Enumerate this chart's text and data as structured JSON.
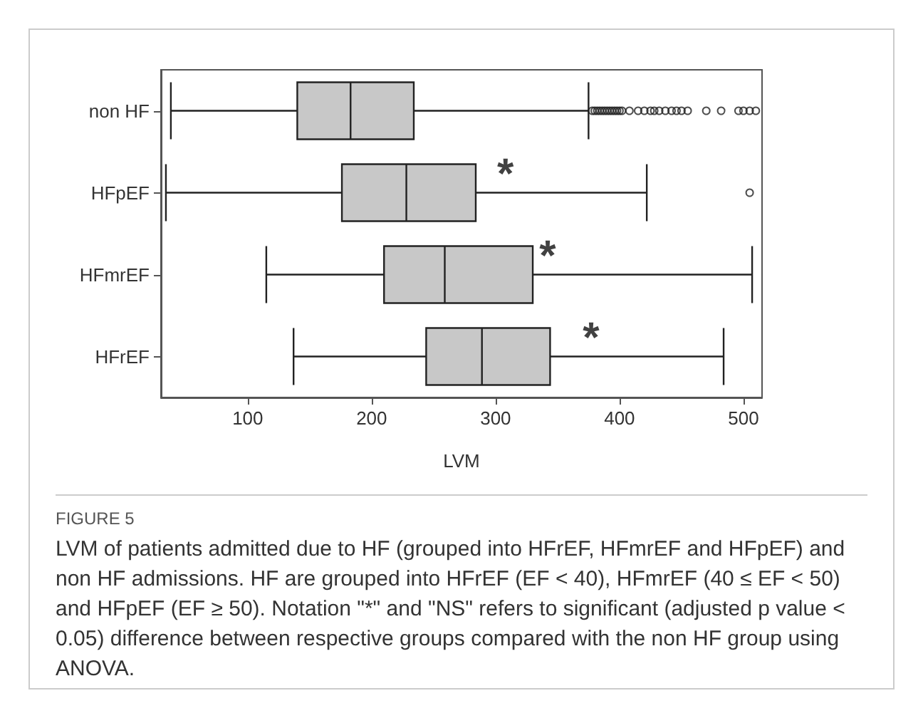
{
  "chart_data": {
    "type": "box",
    "orientation": "horizontal",
    "xlabel": "LVM",
    "categories": [
      "non HF",
      "HFpEF",
      "HFmrEF",
      "HFrEF"
    ],
    "boxes": [
      {
        "low": 38,
        "q1": 140,
        "median": 183,
        "q3": 234,
        "high": 375,
        "outliers": [
          378,
          380,
          382,
          384,
          386,
          388,
          390,
          392,
          394,
          396,
          398,
          400,
          402,
          408,
          415,
          420,
          425,
          428,
          432,
          437,
          442,
          446,
          450,
          455,
          470,
          482,
          496,
          500,
          505,
          510
        ]
      },
      {
        "low": 34,
        "q1": 176,
        "median": 228,
        "q3": 284,
        "high": 422,
        "outliers": [
          505
        ]
      },
      {
        "low": 115,
        "q1": 210,
        "median": 259,
        "q3": 330,
        "high": 507
      },
      {
        "low": 137,
        "q1": 244,
        "median": 289,
        "q3": 344,
        "high": 484
      }
    ],
    "color": "#c8c8c8",
    "xlim": [
      30,
      515
    ],
    "xticks": [
      100,
      200,
      300,
      400,
      500
    ],
    "grid": false,
    "annotations": [
      {
        "text": "*",
        "x": 308,
        "y": "HFpEF"
      },
      {
        "text": "*",
        "x": 342,
        "y": "HFmrEF"
      },
      {
        "text": "*",
        "x": 377,
        "y": "HFrEF"
      },
      "FIGURE 5",
      "LVM of patients admitted due to HF (grouped into HFrEF, HFmrEF and HFpEF) and non HF admissions. HF are grouped into HFrEF (EF < 40), HFmrEF (40 ≤ EF < 50) and HFpEF (EF ≥ 50). Notation \"*\" and \"NS\" refers to significant (adjusted p value < 0.05) difference between respective groups compared with the non HF group using ANOVA."
    ]
  }
}
